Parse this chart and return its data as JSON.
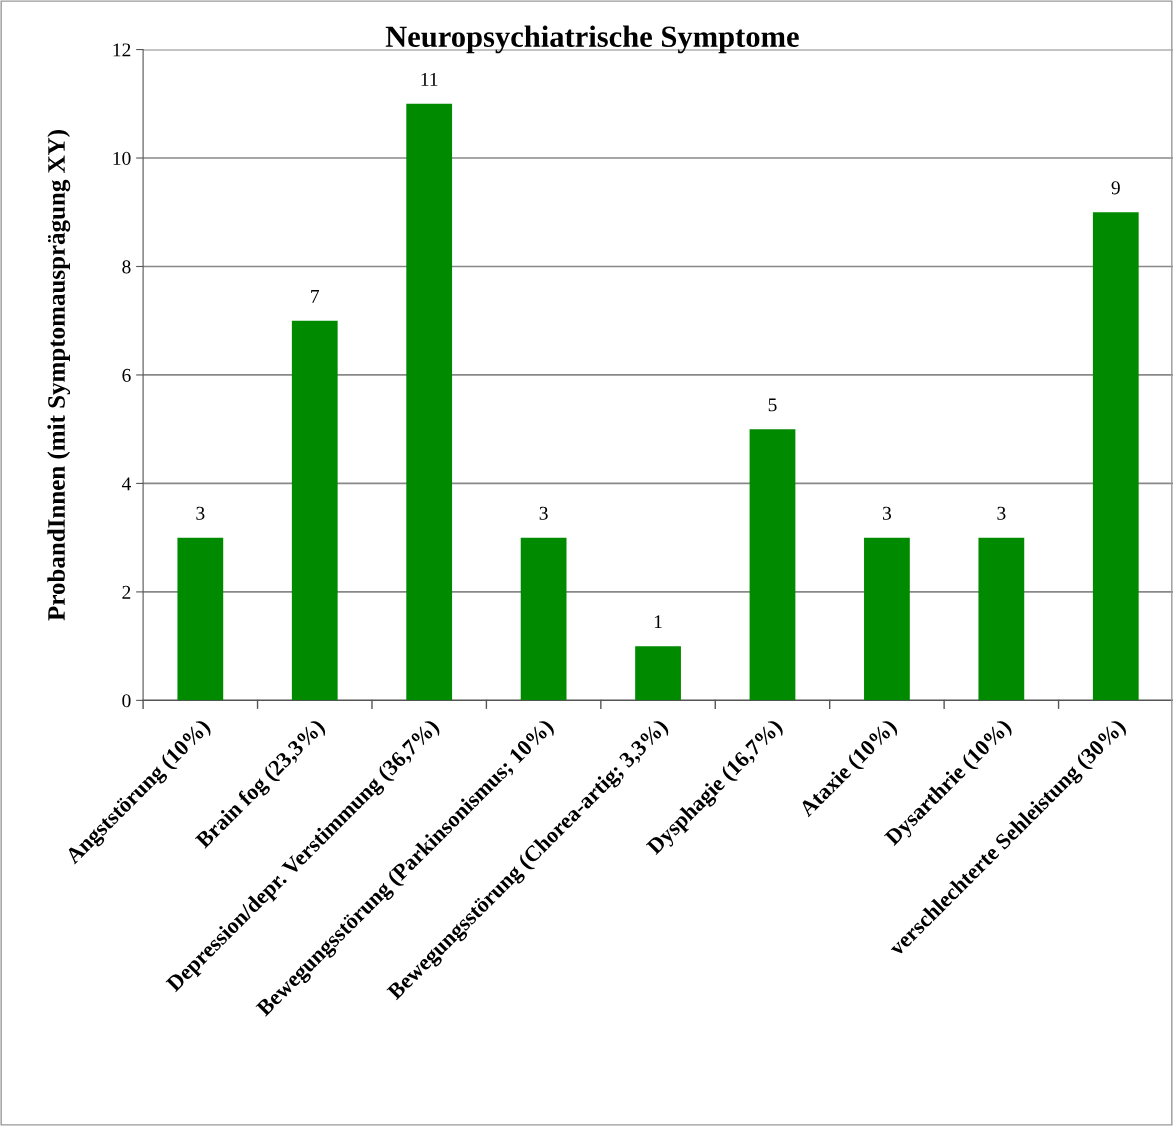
{
  "chart_data": {
    "type": "bar",
    "title": "Neuropsychiatrische Symptome",
    "ylabel": "ProbandInnen (mit Symptomausprägung XY)",
    "categories": [
      "Angststörung (10%)",
      "Brain fog (23,3%)",
      "Depression/depr. Verstimmung (36,7%)",
      "Bewegungsstörung (Parkinsonismus; 10%)",
      "Bewegungsstörung (Chorea-artig; 3,3%)",
      "Dysphagie (16,7%)",
      "Ataxie (10%)",
      "Dysarthrie (10%)",
      "verschlechterte Sehleistung (30%)"
    ],
    "values": [
      3,
      7,
      11,
      3,
      1,
      5,
      3,
      3,
      9
    ],
    "color": "#008a00",
    "ylim": [
      0,
      12
    ],
    "yticks": [
      0,
      2,
      4,
      6,
      8,
      10,
      12
    ],
    "grid": "y",
    "data_labels": true,
    "legend": false
  }
}
